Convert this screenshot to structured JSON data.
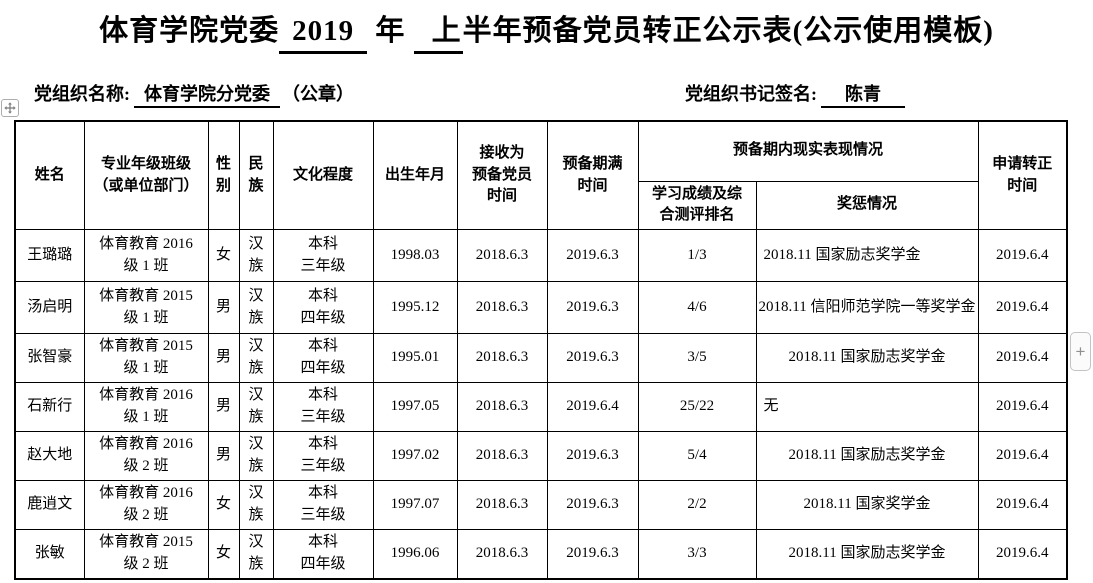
{
  "title": {
    "part1": "体育学院党委",
    "year": "2019",
    "part2": "年",
    "half": "上",
    "part3": "半年预备党员转正公示表(公示使用模板)"
  },
  "org_line": {
    "name_label": "党组织名称:",
    "name_value": "体育学院分党委",
    "seal_suffix": "（公章）",
    "secretary_label": "党组织书记签名:",
    "secretary_value": "陈青"
  },
  "controls": {
    "add_button_label": "+"
  },
  "table": {
    "headers": {
      "name": "姓名",
      "class": "专业年级班级\n（或单位部门）",
      "gender": "性\n别",
      "ethnicity": "民\n族",
      "education": "文化程度",
      "birth": "出生年月",
      "join": "接收为\n预备党员\n时间",
      "due": "预备期满\n时间",
      "performance": "预备期内现实表现情况",
      "rank": "学习成绩及综\n合测评排名",
      "award": "奖惩情况",
      "apply": "申请转正\n时间"
    },
    "rows": [
      {
        "name": "王璐璐",
        "class": "体育教育 2016\n级 1 班",
        "gender": "女",
        "ethnicity": "汉\n族",
        "education": "本科\n三年级",
        "birth": "1998.03",
        "join": "2018.6.3",
        "due": "2019.6.3",
        "rank": "1/3",
        "award": "2018.11 国家励志奖学金",
        "apply": "2019.6.4"
      },
      {
        "name": "汤启明",
        "class": "体育教育 2015\n级 1 班",
        "gender": "男",
        "ethnicity": "汉\n族",
        "education": "本科\n四年级",
        "birth": "1995.12",
        "join": "2018.6.3",
        "due": "2019.6.3",
        "rank": "4/6",
        "award": "2018.11 信阳师范学院一等奖学金",
        "apply": "2019.6.4"
      },
      {
        "name": "张智豪",
        "class": "体育教育 2015\n级 1 班",
        "gender": "男",
        "ethnicity": "汉\n族",
        "education": "本科\n四年级",
        "birth": "1995.01",
        "join": "2018.6.3",
        "due": "2019.6.3",
        "rank": "3/5",
        "award": "2018.11 国家励志奖学金",
        "apply": "2019.6.4"
      },
      {
        "name": "石新行",
        "class": "体育教育 2016\n级 1 班",
        "gender": "男",
        "ethnicity": "汉\n族",
        "education": "本科\n三年级",
        "birth": "1997.05",
        "join": "2018.6.3",
        "due": "2019.6.4",
        "rank": "25/22",
        "award": "无",
        "apply": "2019.6.4"
      },
      {
        "name": "赵大地",
        "class": "体育教育 2016\n级 2 班",
        "gender": "男",
        "ethnicity": "汉\n族",
        "education": "本科\n三年级",
        "birth": "1997.02",
        "join": "2018.6.3",
        "due": "2019.6.3",
        "rank": "5/4",
        "award": "2018.11 国家励志奖学金",
        "apply": "2019.6.4"
      },
      {
        "name": "鹿逍文",
        "class": "体育教育 2016\n级 2 班",
        "gender": "女",
        "ethnicity": "汉\n族",
        "education": "本科\n三年级",
        "birth": "1997.07",
        "join": "2018.6.3",
        "due": "2019.6.3",
        "rank": "2/2",
        "award": "2018.11 国家奖学金",
        "apply": "2019.6.4"
      },
      {
        "name": "张敏",
        "class": "体育教育 2015\n级 2 班",
        "gender": "女",
        "ethnicity": "汉\n族",
        "education": "本科\n四年级",
        "birth": "1996.06",
        "join": "2018.6.3",
        "due": "2019.6.3",
        "rank": "3/3",
        "award": "2018.11 国家励志奖学金",
        "apply": "2019.6.4"
      }
    ]
  }
}
